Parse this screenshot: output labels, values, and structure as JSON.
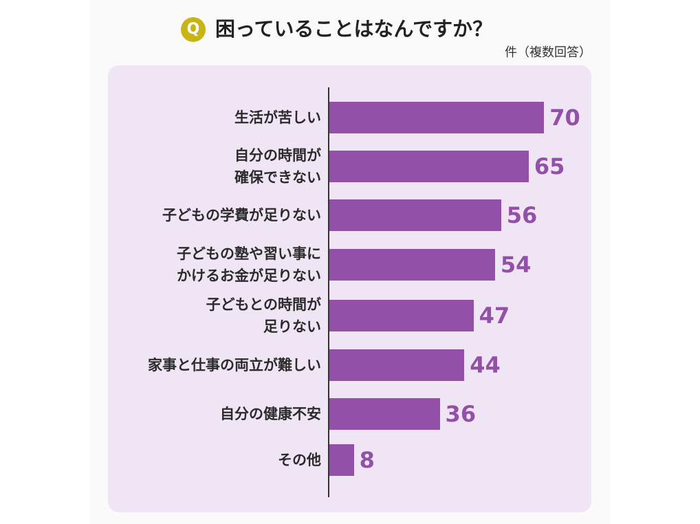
{
  "header": {
    "badge": "Q"
  },
  "colors": {
    "bar": "#9350a8",
    "badge": "#c8b414",
    "panel": "#efe5f4",
    "value_label": "#9350a8"
  },
  "chart_data": {
    "type": "bar",
    "orientation": "horizontal",
    "title": "困っていることはなんですか？",
    "unit": "件（複数回答）",
    "categories": [
      "生活が苦しい",
      "自分の時間が\n確保できない",
      "子どもの学費が足りない",
      "子どもの塾や習い事に\nかけるお金が足りない",
      "子どもとの時間が\n足りない",
      "家事と仕事の両立が難しい",
      "自分の健康不安",
      "その他"
    ],
    "values": [
      70,
      65,
      56,
      54,
      47,
      44,
      36,
      8
    ],
    "data_labels": true,
    "grid": false,
    "legend": "none"
  }
}
